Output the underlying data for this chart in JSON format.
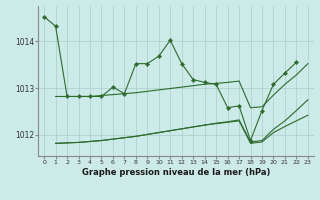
{
  "bg_color": "#cceae7",
  "grid_color": "#aacccc",
  "line_color": "#2d6b2d",
  "marker_color": "#2d6b2d",
  "title": "Graphe pression niveau de la mer (hPa)",
  "xlim": [
    -0.5,
    23.5
  ],
  "ylim": [
    1011.55,
    1014.75
  ],
  "yticks": [
    1012,
    1013,
    1014
  ],
  "xticks": [
    0,
    1,
    2,
    3,
    4,
    5,
    6,
    7,
    8,
    9,
    10,
    11,
    12,
    13,
    14,
    15,
    16,
    17,
    18,
    19,
    20,
    21,
    22,
    23
  ],
  "main_x": [
    0,
    1,
    2,
    3,
    4,
    5,
    6,
    7,
    8,
    9,
    10,
    11,
    12,
    13,
    14,
    15,
    16,
    17,
    18,
    19,
    20,
    21,
    22
  ],
  "main_y": [
    1014.52,
    1014.32,
    1012.82,
    1012.82,
    1012.82,
    1012.82,
    1013.02,
    1012.88,
    1013.52,
    1013.52,
    1013.68,
    1014.02,
    1013.52,
    1013.18,
    1013.12,
    1013.08,
    1012.58,
    1012.62,
    1011.88,
    1012.52,
    1013.08,
    1013.32,
    1013.55
  ],
  "mid_x": [
    1,
    2,
    3,
    4,
    5,
    6,
    7,
    8,
    9,
    10,
    11,
    12,
    13,
    14,
    15,
    16,
    17,
    18,
    19,
    20,
    21,
    22,
    23
  ],
  "mid_y": [
    1012.82,
    1012.82,
    1012.82,
    1012.82,
    1012.84,
    1012.86,
    1012.88,
    1012.9,
    1012.93,
    1012.96,
    1012.99,
    1013.02,
    1013.05,
    1013.08,
    1013.1,
    1013.12,
    1013.15,
    1012.58,
    1012.6,
    1012.85,
    1013.08,
    1013.28,
    1013.52
  ],
  "low1_x": [
    1,
    2,
    3,
    4,
    5,
    6,
    7,
    8,
    9,
    10,
    11,
    12,
    13,
    14,
    15,
    16,
    17,
    18,
    19,
    20,
    21,
    22,
    23
  ],
  "low1_y": [
    1011.82,
    1011.83,
    1011.84,
    1011.86,
    1011.88,
    1011.91,
    1011.94,
    1011.97,
    1012.01,
    1012.05,
    1012.09,
    1012.13,
    1012.17,
    1012.21,
    1012.24,
    1012.27,
    1012.3,
    1011.82,
    1011.85,
    1012.05,
    1012.18,
    1012.3,
    1012.42
  ],
  "low2_x": [
    1,
    2,
    3,
    4,
    5,
    6,
    7,
    8,
    9,
    10,
    11,
    12,
    13,
    14,
    15,
    16,
    17,
    18,
    19,
    20,
    21,
    22,
    23
  ],
  "low2_y": [
    1011.82,
    1011.83,
    1011.84,
    1011.86,
    1011.88,
    1011.91,
    1011.94,
    1011.97,
    1012.01,
    1012.05,
    1012.09,
    1012.13,
    1012.17,
    1012.21,
    1012.25,
    1012.28,
    1012.32,
    1011.85,
    1011.88,
    1012.12,
    1012.3,
    1012.52,
    1012.75
  ]
}
